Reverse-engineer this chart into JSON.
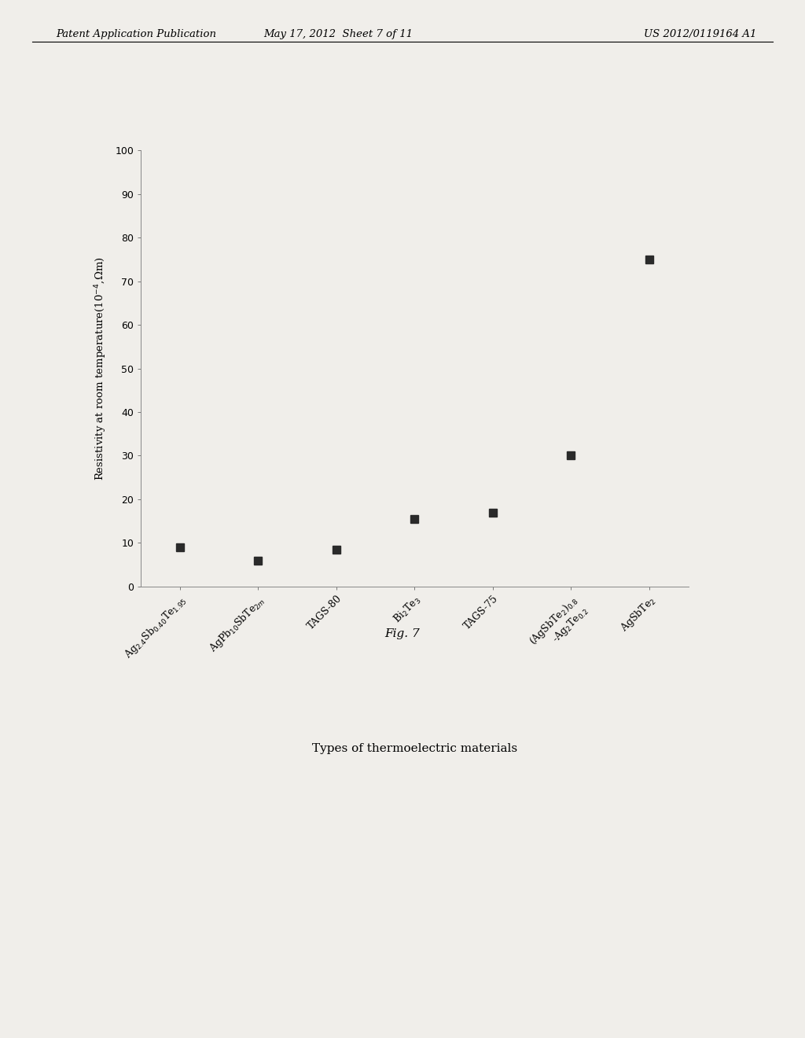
{
  "categories": [
    "Ag$_{2.4}$Sb$_{0.40}$Te$_{1.95}$",
    "AgPb$_{10}$SbTe$_{2m}$",
    "TAGS-80",
    "Bi$_2$Te$_3$",
    "TAGS-75",
    "(AgSbTe$_2$)$_{0.8}$\n-Ag$_2$Te$_{0.2}$",
    "AgSbTe$_2$"
  ],
  "values": [
    9,
    6,
    8.5,
    15.5,
    17,
    30,
    75
  ],
  "xlabel": "Types of thermoelectric materials",
  "ylabel": "Resistivity at room temperature(10$^{-4}$,Ωm)",
  "ylim": [
    0,
    100
  ],
  "yticks": [
    0,
    10,
    20,
    30,
    40,
    50,
    60,
    70,
    80,
    90,
    100
  ],
  "fig_label": "Fig. 7",
  "header_left": "Patent Application Publication",
  "header_center": "May 17, 2012  Sheet 7 of 11",
  "header_right": "US 2012/0119164 A1",
  "marker_color": "#2a2a2a",
  "marker_size": 7,
  "background_color": "#f0eeea",
  "text_color": "#333333"
}
